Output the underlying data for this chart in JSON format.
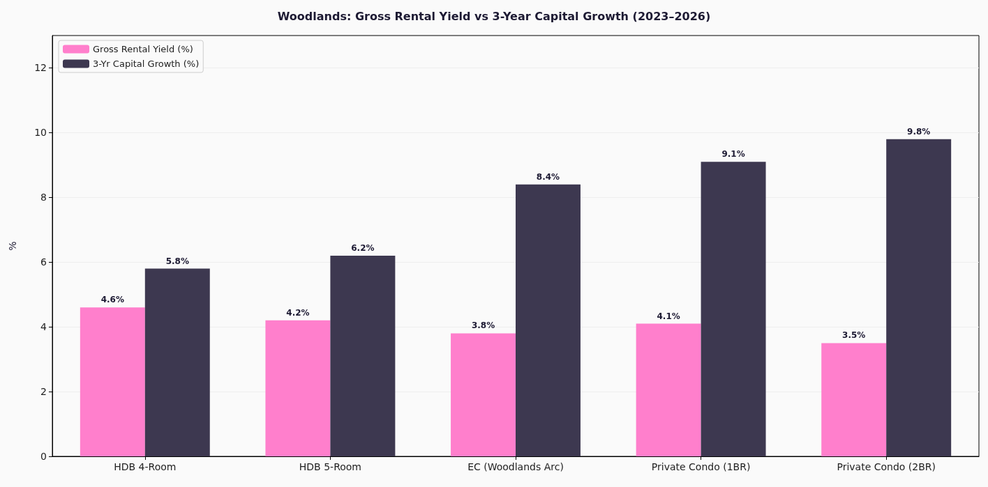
{
  "chart_data": {
    "type": "bar",
    "title": "Woodlands: Gross Rental Yield vs 3-Year Capital Growth (2023–2026)",
    "ylabel": "%",
    "categories": [
      "HDB 4-Room",
      "HDB 5-Room",
      "EC (Woodlands Arc)",
      "Private Condo (1BR)",
      "Private Condo (2BR)"
    ],
    "series": [
      {
        "name": "Gross Rental Yield (%)",
        "color": "#ff7fcc",
        "values": [
          4.6,
          4.2,
          3.8,
          4.1,
          3.5
        ],
        "value_labels": [
          "4.6%",
          "4.2%",
          "3.8%",
          "4.1%",
          "3.5%"
        ]
      },
      {
        "name": "3-Yr Capital Growth (%)",
        "color": "#3d3850",
        "values": [
          5.8,
          6.2,
          8.4,
          9.1,
          9.8
        ],
        "value_labels": [
          "5.8%",
          "6.2%",
          "8.4%",
          "9.1%",
          "9.8%"
        ]
      }
    ],
    "ylim": [
      0,
      13
    ],
    "yticks": [
      0,
      2,
      4,
      6,
      8,
      10,
      12
    ],
    "grid": "y",
    "legend": "top left"
  }
}
